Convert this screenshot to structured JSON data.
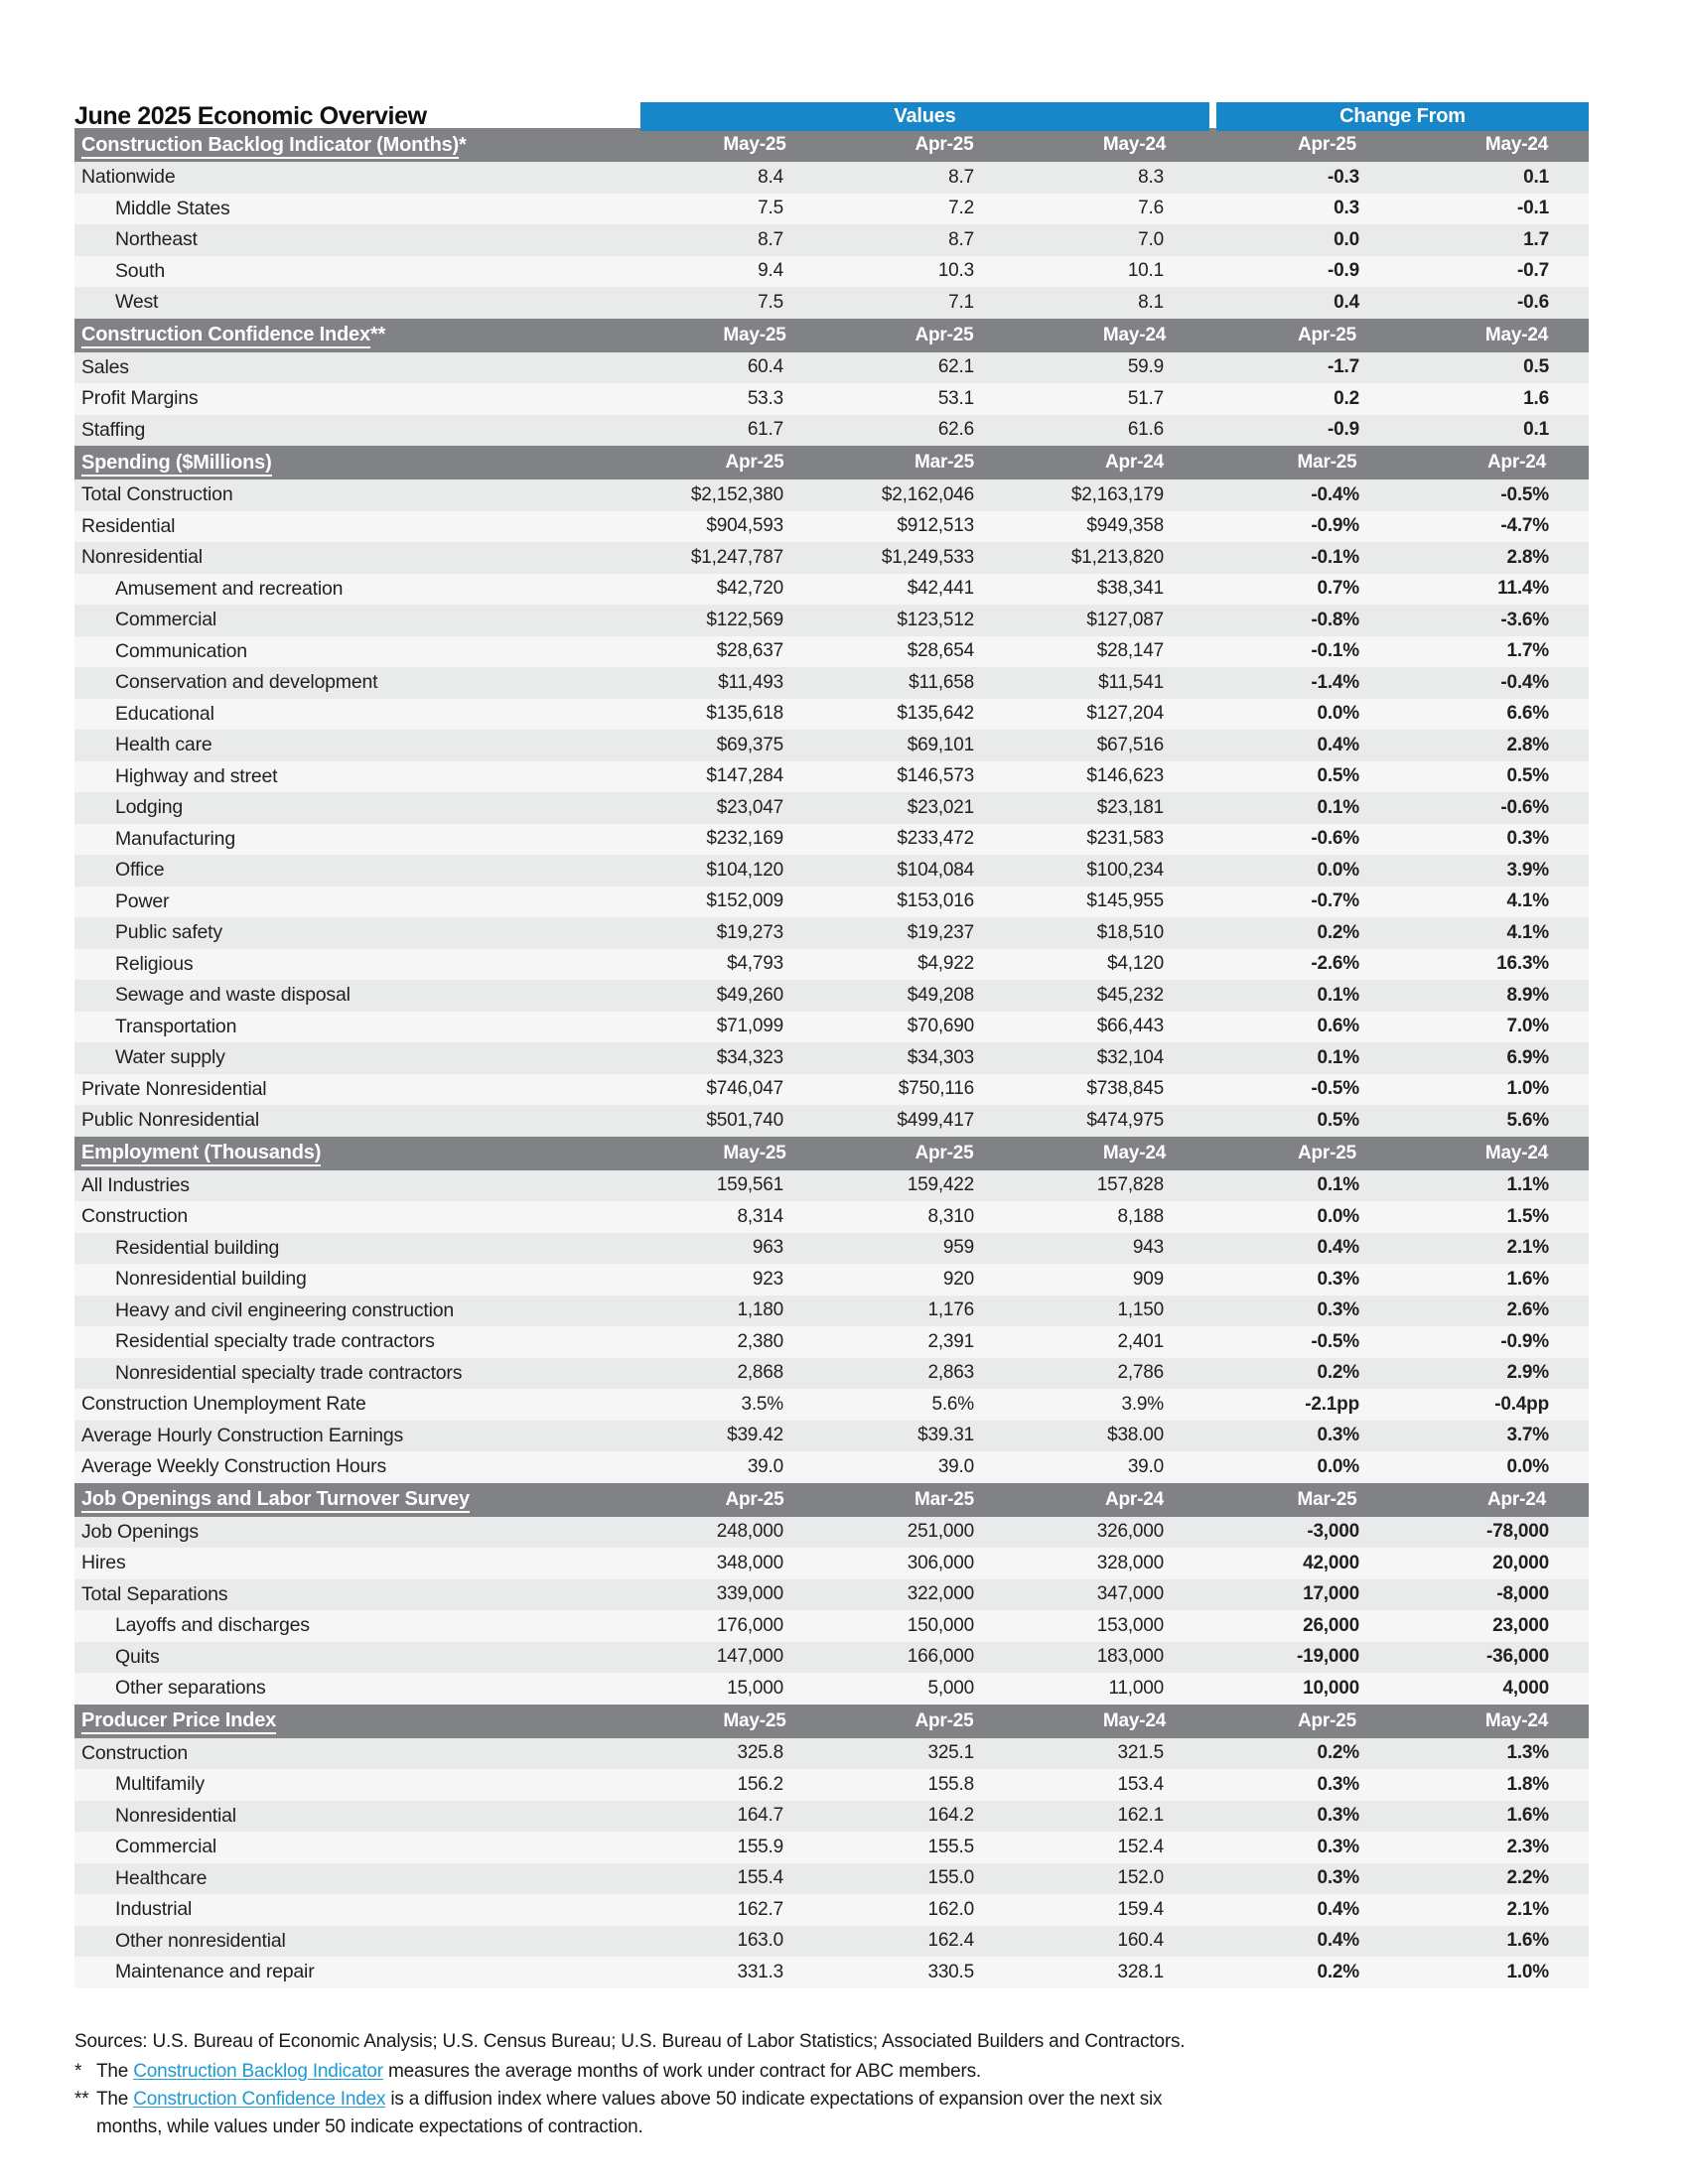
{
  "title": "June 2025 Economic Overview",
  "header": {
    "values_label": "Values",
    "change_label": "Change From"
  },
  "colors": {
    "accent_blue": "#1787c9",
    "section_gray": "#808285",
    "stripe_dark": "#e9eaea",
    "stripe_light": "#f6f6f6",
    "link_blue": "#1d9bd5"
  },
  "sections": [
    {
      "name": "Construction Backlog Indicator (Months)",
      "suffix": "*",
      "columns": [
        "May-25",
        "Apr-25",
        "May-24",
        "Apr-25",
        "May-24"
      ],
      "rows": [
        {
          "label": "Nationwide",
          "indent": false,
          "values": [
            "8.4",
            "8.7",
            "8.3"
          ],
          "changes": [
            "-0.3",
            "0.1"
          ]
        },
        {
          "label": "Middle States",
          "indent": true,
          "values": [
            "7.5",
            "7.2",
            "7.6"
          ],
          "changes": [
            "0.3",
            "-0.1"
          ]
        },
        {
          "label": "Northeast",
          "indent": true,
          "values": [
            "8.7",
            "8.7",
            "7.0"
          ],
          "changes": [
            "0.0",
            "1.7"
          ]
        },
        {
          "label": "South",
          "indent": true,
          "values": [
            "9.4",
            "10.3",
            "10.1"
          ],
          "changes": [
            "-0.9",
            "-0.7"
          ]
        },
        {
          "label": "West",
          "indent": true,
          "values": [
            "7.5",
            "7.1",
            "8.1"
          ],
          "changes": [
            "0.4",
            "-0.6"
          ]
        }
      ]
    },
    {
      "name": "Construction Confidence Index",
      "suffix": "**",
      "columns": [
        "May-25",
        "Apr-25",
        "May-24",
        "Apr-25",
        "May-24"
      ],
      "rows": [
        {
          "label": "Sales",
          "indent": false,
          "values": [
            "60.4",
            "62.1",
            "59.9"
          ],
          "changes": [
            "-1.7",
            "0.5"
          ]
        },
        {
          "label": "Profit Margins",
          "indent": false,
          "values": [
            "53.3",
            "53.1",
            "51.7"
          ],
          "changes": [
            "0.2",
            "1.6"
          ]
        },
        {
          "label": "Staffing",
          "indent": false,
          "values": [
            "61.7",
            "62.6",
            "61.6"
          ],
          "changes": [
            "-0.9",
            "0.1"
          ]
        }
      ]
    },
    {
      "name": "Spending ($Millions)",
      "suffix": "",
      "columns": [
        "Apr-25",
        "Mar-25",
        "Apr-24",
        "Mar-25",
        "Apr-24"
      ],
      "rows": [
        {
          "label": "Total Construction",
          "indent": false,
          "values": [
            "$2,152,380",
            "$2,162,046",
            "$2,163,179"
          ],
          "changes": [
            "-0.4%",
            "-0.5%"
          ]
        },
        {
          "label": "Residential",
          "indent": false,
          "values": [
            "$904,593",
            "$912,513",
            "$949,358"
          ],
          "changes": [
            "-0.9%",
            "-4.7%"
          ]
        },
        {
          "label": "Nonresidential",
          "indent": false,
          "values": [
            "$1,247,787",
            "$1,249,533",
            "$1,213,820"
          ],
          "changes": [
            "-0.1%",
            "2.8%"
          ]
        },
        {
          "label": "Amusement and recreation",
          "indent": true,
          "values": [
            "$42,720",
            "$42,441",
            "$38,341"
          ],
          "changes": [
            "0.7%",
            "11.4%"
          ]
        },
        {
          "label": "Commercial",
          "indent": true,
          "values": [
            "$122,569",
            "$123,512",
            "$127,087"
          ],
          "changes": [
            "-0.8%",
            "-3.6%"
          ]
        },
        {
          "label": "Communication",
          "indent": true,
          "values": [
            "$28,637",
            "$28,654",
            "$28,147"
          ],
          "changes": [
            "-0.1%",
            "1.7%"
          ]
        },
        {
          "label": "Conservation and development",
          "indent": true,
          "values": [
            "$11,493",
            "$11,658",
            "$11,541"
          ],
          "changes": [
            "-1.4%",
            "-0.4%"
          ]
        },
        {
          "label": "Educational",
          "indent": true,
          "values": [
            "$135,618",
            "$135,642",
            "$127,204"
          ],
          "changes": [
            "0.0%",
            "6.6%"
          ]
        },
        {
          "label": "Health care",
          "indent": true,
          "values": [
            "$69,375",
            "$69,101",
            "$67,516"
          ],
          "changes": [
            "0.4%",
            "2.8%"
          ]
        },
        {
          "label": "Highway and street",
          "indent": true,
          "values": [
            "$147,284",
            "$146,573",
            "$146,623"
          ],
          "changes": [
            "0.5%",
            "0.5%"
          ]
        },
        {
          "label": "Lodging",
          "indent": true,
          "values": [
            "$23,047",
            "$23,021",
            "$23,181"
          ],
          "changes": [
            "0.1%",
            "-0.6%"
          ]
        },
        {
          "label": "Manufacturing",
          "indent": true,
          "values": [
            "$232,169",
            "$233,472",
            "$231,583"
          ],
          "changes": [
            "-0.6%",
            "0.3%"
          ]
        },
        {
          "label": "Office",
          "indent": true,
          "values": [
            "$104,120",
            "$104,084",
            "$100,234"
          ],
          "changes": [
            "0.0%",
            "3.9%"
          ]
        },
        {
          "label": "Power",
          "indent": true,
          "values": [
            "$152,009",
            "$153,016",
            "$145,955"
          ],
          "changes": [
            "-0.7%",
            "4.1%"
          ]
        },
        {
          "label": "Public safety",
          "indent": true,
          "values": [
            "$19,273",
            "$19,237",
            "$18,510"
          ],
          "changes": [
            "0.2%",
            "4.1%"
          ]
        },
        {
          "label": "Religious",
          "indent": true,
          "values": [
            "$4,793",
            "$4,922",
            "$4,120"
          ],
          "changes": [
            "-2.6%",
            "16.3%"
          ]
        },
        {
          "label": "Sewage and waste disposal",
          "indent": true,
          "values": [
            "$49,260",
            "$49,208",
            "$45,232"
          ],
          "changes": [
            "0.1%",
            "8.9%"
          ]
        },
        {
          "label": "Transportation",
          "indent": true,
          "values": [
            "$71,099",
            "$70,690",
            "$66,443"
          ],
          "changes": [
            "0.6%",
            "7.0%"
          ]
        },
        {
          "label": "Water supply",
          "indent": true,
          "values": [
            "$34,323",
            "$34,303",
            "$32,104"
          ],
          "changes": [
            "0.1%",
            "6.9%"
          ]
        },
        {
          "label": "Private Nonresidential",
          "indent": false,
          "values": [
            "$746,047",
            "$750,116",
            "$738,845"
          ],
          "changes": [
            "-0.5%",
            "1.0%"
          ]
        },
        {
          "label": "Public Nonresidential",
          "indent": false,
          "values": [
            "$501,740",
            "$499,417",
            "$474,975"
          ],
          "changes": [
            "0.5%",
            "5.6%"
          ]
        }
      ]
    },
    {
      "name": "Employment (Thousands)",
      "suffix": "",
      "columns": [
        "May-25",
        "Apr-25",
        "May-24",
        "Apr-25",
        "May-24"
      ],
      "rows": [
        {
          "label": "All Industries",
          "indent": false,
          "values": [
            "159,561",
            "159,422",
            "157,828"
          ],
          "changes": [
            "0.1%",
            "1.1%"
          ]
        },
        {
          "label": "Construction",
          "indent": false,
          "values": [
            "8,314",
            "8,310",
            "8,188"
          ],
          "changes": [
            "0.0%",
            "1.5%"
          ]
        },
        {
          "label": "Residential building",
          "indent": true,
          "values": [
            "963",
            "959",
            "943"
          ],
          "changes": [
            "0.4%",
            "2.1%"
          ]
        },
        {
          "label": "Nonresidential building",
          "indent": true,
          "values": [
            "923",
            "920",
            "909"
          ],
          "changes": [
            "0.3%",
            "1.6%"
          ]
        },
        {
          "label": "Heavy and civil engineering construction",
          "indent": true,
          "values": [
            "1,180",
            "1,176",
            "1,150"
          ],
          "changes": [
            "0.3%",
            "2.6%"
          ]
        },
        {
          "label": "Residential specialty trade contractors",
          "indent": true,
          "values": [
            "2,380",
            "2,391",
            "2,401"
          ],
          "changes": [
            "-0.5%",
            "-0.9%"
          ]
        },
        {
          "label": "Nonresidential specialty trade contractors",
          "indent": true,
          "values": [
            "2,868",
            "2,863",
            "2,786"
          ],
          "changes": [
            "0.2%",
            "2.9%"
          ]
        },
        {
          "label": "Construction Unemployment Rate",
          "indent": false,
          "values": [
            "3.5%",
            "5.6%",
            "3.9%"
          ],
          "changes": [
            "-2.1pp",
            "-0.4pp"
          ]
        },
        {
          "label": "Average Hourly Construction Earnings",
          "indent": false,
          "values": [
            "$39.42",
            "$39.31",
            "$38.00"
          ],
          "changes": [
            "0.3%",
            "3.7%"
          ]
        },
        {
          "label": "Average Weekly Construction Hours",
          "indent": false,
          "values": [
            "39.0",
            "39.0",
            "39.0"
          ],
          "changes": [
            "0.0%",
            "0.0%"
          ]
        }
      ]
    },
    {
      "name": "Job Openings and Labor Turnover Survey",
      "suffix": "",
      "columns": [
        "Apr-25",
        "Mar-25",
        "Apr-24",
        "Mar-25",
        "Apr-24"
      ],
      "rows": [
        {
          "label": "Job Openings",
          "indent": false,
          "values": [
            "248,000",
            "251,000",
            "326,000"
          ],
          "changes": [
            "-3,000",
            "-78,000"
          ]
        },
        {
          "label": "Hires",
          "indent": false,
          "values": [
            "348,000",
            "306,000",
            "328,000"
          ],
          "changes": [
            "42,000",
            "20,000"
          ]
        },
        {
          "label": "Total Separations",
          "indent": false,
          "values": [
            "339,000",
            "322,000",
            "347,000"
          ],
          "changes": [
            "17,000",
            "-8,000"
          ]
        },
        {
          "label": "Layoffs and discharges",
          "indent": true,
          "values": [
            "176,000",
            "150,000",
            "153,000"
          ],
          "changes": [
            "26,000",
            "23,000"
          ]
        },
        {
          "label": "Quits",
          "indent": true,
          "values": [
            "147,000",
            "166,000",
            "183,000"
          ],
          "changes": [
            "-19,000",
            "-36,000"
          ]
        },
        {
          "label": "Other separations",
          "indent": true,
          "values": [
            "15,000",
            "5,000",
            "11,000"
          ],
          "changes": [
            "10,000",
            "4,000"
          ]
        }
      ]
    },
    {
      "name": "Producer Price Index",
      "suffix": "",
      "columns": [
        "May-25",
        "Apr-25",
        "May-24",
        "Apr-25",
        "May-24"
      ],
      "rows": [
        {
          "label": "Construction",
          "indent": false,
          "values": [
            "325.8",
            "325.1",
            "321.5"
          ],
          "changes": [
            "0.2%",
            "1.3%"
          ]
        },
        {
          "label": "Multifamily",
          "indent": true,
          "values": [
            "156.2",
            "155.8",
            "153.4"
          ],
          "changes": [
            "0.3%",
            "1.8%"
          ]
        },
        {
          "label": "Nonresidential",
          "indent": true,
          "values": [
            "164.7",
            "164.2",
            "162.1"
          ],
          "changes": [
            "0.3%",
            "1.6%"
          ]
        },
        {
          "label": "Commercial",
          "indent": true,
          "values": [
            "155.9",
            "155.5",
            "152.4"
          ],
          "changes": [
            "0.3%",
            "2.3%"
          ]
        },
        {
          "label": "Healthcare",
          "indent": true,
          "values": [
            "155.4",
            "155.0",
            "152.0"
          ],
          "changes": [
            "0.3%",
            "2.2%"
          ]
        },
        {
          "label": "Industrial",
          "indent": true,
          "values": [
            "162.7",
            "162.0",
            "159.4"
          ],
          "changes": [
            "0.4%",
            "2.1%"
          ]
        },
        {
          "label": "Other nonresidential",
          "indent": true,
          "values": [
            "163.0",
            "162.4",
            "160.4"
          ],
          "changes": [
            "0.4%",
            "1.6%"
          ]
        },
        {
          "label": "Maintenance and repair",
          "indent": true,
          "values": [
            "331.3",
            "330.5",
            "328.1"
          ],
          "changes": [
            "0.2%",
            "1.0%"
          ]
        }
      ]
    }
  ],
  "footnotes": {
    "sources": "Sources: U.S. Bureau of Economic Analysis; U.S. Census Bureau; U.S. Bureau of Labor Statistics; Associated Builders and Contractors.",
    "notes": [
      {
        "marker": "*",
        "pre": "The ",
        "link": "Construction Backlog Indicator",
        "post": " measures the average months of work under contract for ABC members."
      },
      {
        "marker": "**",
        "pre": "The ",
        "link": "Construction Confidence Index",
        "post": " is a diffusion index where values above 50 indicate expectations of expansion over the next six months, while values under 50 indicate expectations of contraction."
      }
    ]
  }
}
